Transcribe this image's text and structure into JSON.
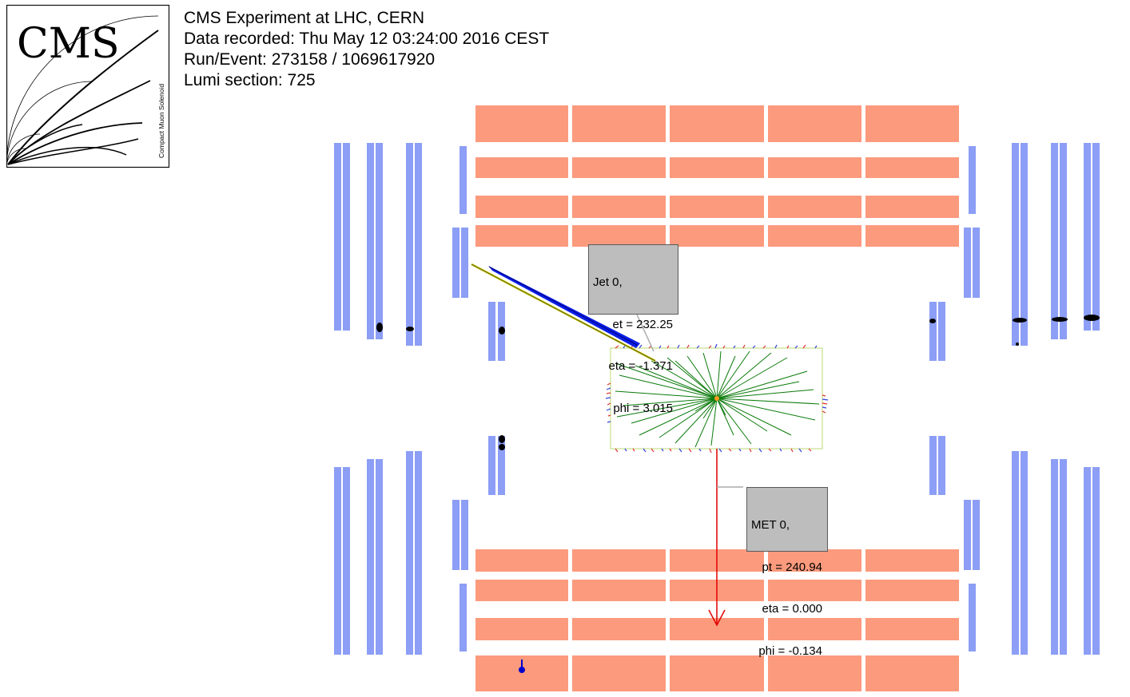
{
  "event_info": {
    "line1": "CMS Experiment at LHC, CERN",
    "line2": "Data recorded: Thu May 12 03:24:00 2016 CEST",
    "line3": "Run/Event: 273158 / 1069617920",
    "line4": "Lumi section: 725"
  },
  "logo": {
    "text": "CMS",
    "subtitle": "Compact Muon Solenoid"
  },
  "jet_label": {
    "title": "Jet 0,",
    "et": "et = 232.25",
    "eta": "eta = -1.371",
    "phi": "phi = 3.015"
  },
  "met_label": {
    "title": "MET 0,",
    "pt": "pt = 240.94",
    "eta": "eta = 0.000",
    "phi": "phi = -0.134"
  },
  "colors": {
    "muon_chamber": "#8c9ef5",
    "hcal": "#fc9a7d",
    "jet": "#0000ff",
    "met": "#ff0000",
    "tracks": "#007700",
    "tracker_outline": "#c8e08a",
    "label_bg": "#bdbdbd"
  }
}
